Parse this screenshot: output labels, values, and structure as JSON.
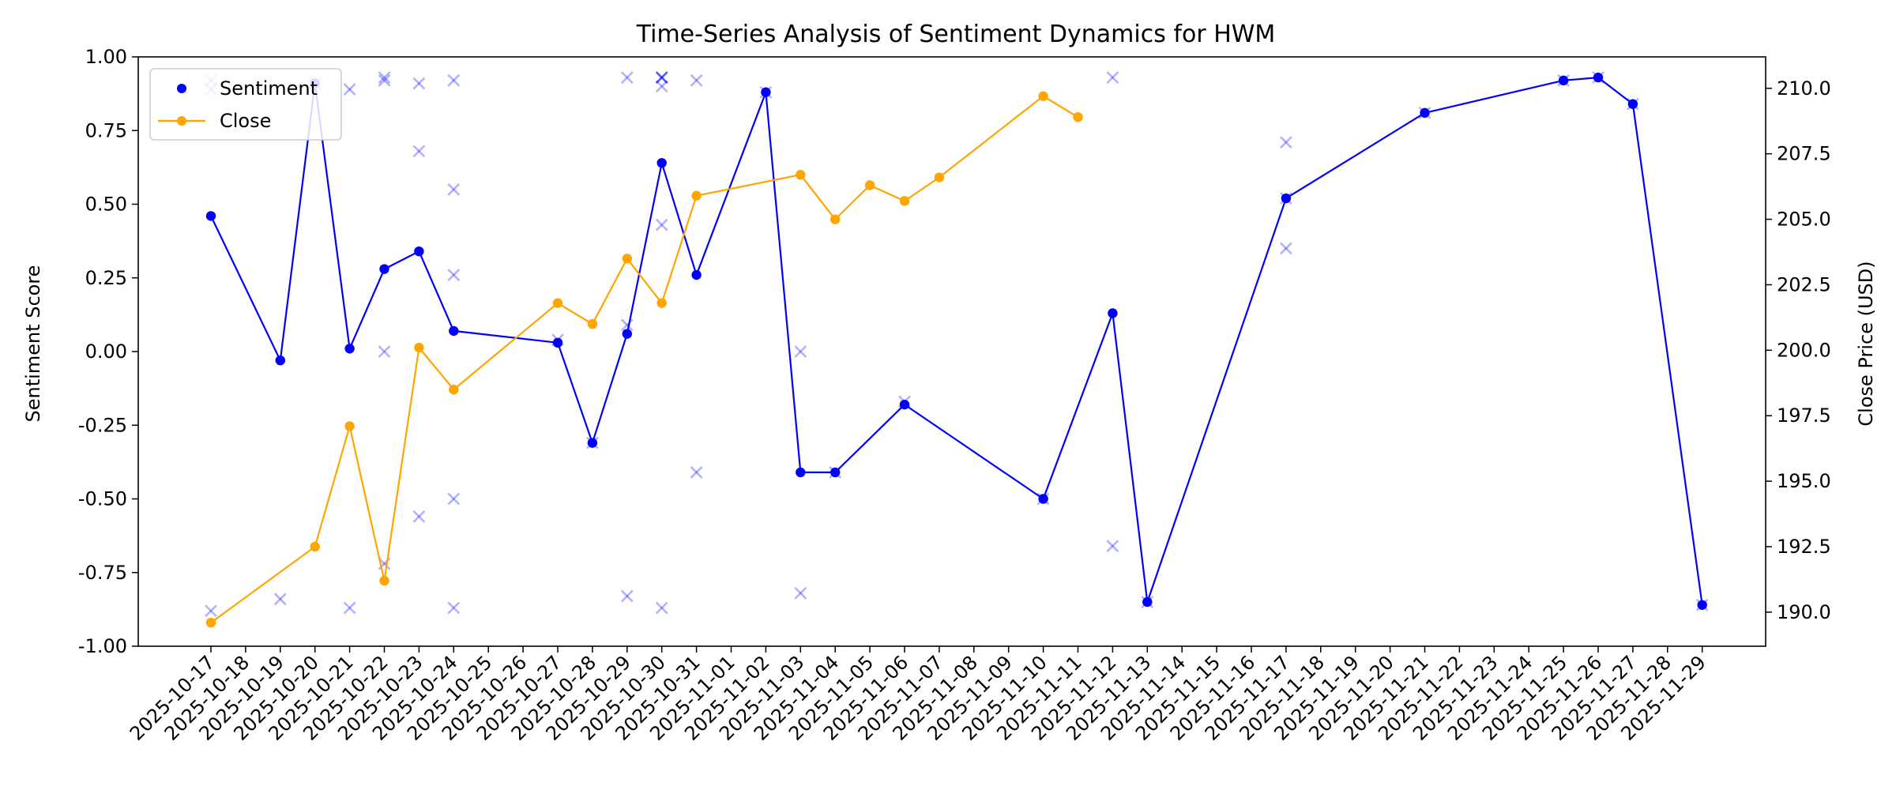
{
  "chart_data": {
    "type": "line",
    "title": "Time-Series Analysis of Sentiment Dynamics for HWM",
    "xlabel": "",
    "ylabel_left": "Sentiment Score",
    "ylabel_right": "Close Price (USD)",
    "ylim_left": [
      -1.0,
      1.0
    ],
    "ylim_right": [
      188.7,
      211.2
    ],
    "yticks_left": [
      "1.00",
      "0.75",
      "0.50",
      "0.25",
      "0.00",
      "-0.25",
      "-0.50",
      "-0.75",
      "-1.00"
    ],
    "yticks_right": [
      "210.0",
      "207.5",
      "205.0",
      "202.5",
      "200.0",
      "197.5",
      "195.0",
      "192.5",
      "190.0"
    ],
    "categories": [
      "2025-10-17",
      "2025-10-18",
      "2025-10-19",
      "2025-10-20",
      "2025-10-21",
      "2025-10-22",
      "2025-10-23",
      "2025-10-24",
      "2025-10-25",
      "2025-10-26",
      "2025-10-27",
      "2025-10-28",
      "2025-10-29",
      "2025-10-30",
      "2025-10-31",
      "2025-11-01",
      "2025-11-02",
      "2025-11-03",
      "2025-11-04",
      "2025-11-05",
      "2025-11-06",
      "2025-11-07",
      "2025-11-08",
      "2025-11-09",
      "2025-11-10",
      "2025-11-11",
      "2025-11-12",
      "2025-11-13",
      "2025-11-14",
      "2025-11-15",
      "2025-11-16",
      "2025-11-17",
      "2025-11-18",
      "2025-11-19",
      "2025-11-20",
      "2025-11-21",
      "2025-11-22",
      "2025-11-23",
      "2025-11-24",
      "2025-11-25",
      "2025-11-26",
      "2025-11-27",
      "2025-11-28",
      "2025-11-29"
    ],
    "grid": false,
    "legend_position": "top-left",
    "series": [
      {
        "name": "Sentiment",
        "color": "#0000ff",
        "axis": "left",
        "points": [
          {
            "x": "2025-10-17",
            "y": 0.46
          },
          {
            "x": "2025-10-19",
            "y": -0.03
          },
          {
            "x": "2025-10-20",
            "y": 0.91
          },
          {
            "x": "2025-10-21",
            "y": 0.01
          },
          {
            "x": "2025-10-22",
            "y": 0.28
          },
          {
            "x": "2025-10-23",
            "y": 0.34
          },
          {
            "x": "2025-10-24",
            "y": 0.07
          },
          {
            "x": "2025-10-27",
            "y": 0.03
          },
          {
            "x": "2025-10-28",
            "y": -0.31
          },
          {
            "x": "2025-10-29",
            "y": 0.06
          },
          {
            "x": "2025-10-30",
            "y": 0.64
          },
          {
            "x": "2025-10-31",
            "y": 0.26
          },
          {
            "x": "2025-11-02",
            "y": 0.88
          },
          {
            "x": "2025-11-03",
            "y": -0.41
          },
          {
            "x": "2025-11-04",
            "y": -0.41
          },
          {
            "x": "2025-11-06",
            "y": -0.18
          },
          {
            "x": "2025-11-10",
            "y": -0.5
          },
          {
            "x": "2025-11-12",
            "y": 0.13
          },
          {
            "x": "2025-11-13",
            "y": -0.85
          },
          {
            "x": "2025-11-17",
            "y": 0.52
          },
          {
            "x": "2025-11-21",
            "y": 0.81
          },
          {
            "x": "2025-11-25",
            "y": 0.92
          },
          {
            "x": "2025-11-26",
            "y": 0.93
          },
          {
            "x": "2025-11-27",
            "y": 0.84
          },
          {
            "x": "2025-11-29",
            "y": -0.86
          }
        ]
      },
      {
        "name": "Close",
        "color": "#ffa500",
        "axis": "right",
        "points": [
          {
            "x": "2025-10-17",
            "y": 189.6
          },
          {
            "x": "2025-10-20",
            "y": 192.5
          },
          {
            "x": "2025-10-21",
            "y": 197.1
          },
          {
            "x": "2025-10-22",
            "y": 191.2
          },
          {
            "x": "2025-10-23",
            "y": 200.1
          },
          {
            "x": "2025-10-24",
            "y": 198.5
          },
          {
            "x": "2025-10-27",
            "y": 201.8
          },
          {
            "x": "2025-10-28",
            "y": 201.0
          },
          {
            "x": "2025-10-29",
            "y": 203.5
          },
          {
            "x": "2025-10-30",
            "y": 201.8
          },
          {
            "x": "2025-10-31",
            "y": 205.9
          },
          {
            "x": "2025-11-03",
            "y": 206.7
          },
          {
            "x": "2025-11-04",
            "y": 205.0
          },
          {
            "x": "2025-11-05",
            "y": 206.3
          },
          {
            "x": "2025-11-06",
            "y": 205.7
          },
          {
            "x": "2025-11-07",
            "y": 206.6
          },
          {
            "x": "2025-11-10",
            "y": 209.7
          },
          {
            "x": "2025-11-11",
            "y": 208.9
          }
        ]
      }
    ],
    "scatter_marks": {
      "marker": "x",
      "color": "#0000ff",
      "axis": "left",
      "points": [
        {
          "x": "2025-10-17",
          "y": 0.92
        },
        {
          "x": "2025-10-17",
          "y": 0.89
        },
        {
          "x": "2025-10-17",
          "y": -0.88
        },
        {
          "x": "2025-10-19",
          "y": -0.84
        },
        {
          "x": "2025-10-20",
          "y": 0.91
        },
        {
          "x": "2025-10-21",
          "y": 0.89
        },
        {
          "x": "2025-10-21",
          "y": -0.87
        },
        {
          "x": "2025-10-22",
          "y": 0.93
        },
        {
          "x": "2025-10-22",
          "y": 0.92
        },
        {
          "x": "2025-10-22",
          "y": 0.0
        },
        {
          "x": "2025-10-22",
          "y": -0.72
        },
        {
          "x": "2025-10-23",
          "y": 0.91
        },
        {
          "x": "2025-10-23",
          "y": 0.68
        },
        {
          "x": "2025-10-23",
          "y": -0.56
        },
        {
          "x": "2025-10-24",
          "y": 0.92
        },
        {
          "x": "2025-10-24",
          "y": 0.55
        },
        {
          "x": "2025-10-24",
          "y": 0.26
        },
        {
          "x": "2025-10-24",
          "y": -0.5
        },
        {
          "x": "2025-10-24",
          "y": -0.87
        },
        {
          "x": "2025-10-27",
          "y": 0.04
        },
        {
          "x": "2025-10-28",
          "y": -0.31
        },
        {
          "x": "2025-10-29",
          "y": 0.93
        },
        {
          "x": "2025-10-29",
          "y": 0.09
        },
        {
          "x": "2025-10-29",
          "y": -0.83
        },
        {
          "x": "2025-10-30",
          "y": 0.93
        },
        {
          "x": "2025-10-30",
          "y": 0.93
        },
        {
          "x": "2025-10-30",
          "y": 0.93
        },
        {
          "x": "2025-10-30",
          "y": 0.9
        },
        {
          "x": "2025-10-30",
          "y": 0.43
        },
        {
          "x": "2025-10-30",
          "y": -0.87
        },
        {
          "x": "2025-10-31",
          "y": 0.92
        },
        {
          "x": "2025-10-31",
          "y": -0.41
        },
        {
          "x": "2025-11-02",
          "y": 0.88
        },
        {
          "x": "2025-11-03",
          "y": 0.0
        },
        {
          "x": "2025-11-03",
          "y": -0.82
        },
        {
          "x": "2025-11-04",
          "y": -0.41
        },
        {
          "x": "2025-11-06",
          "y": -0.17
        },
        {
          "x": "2025-11-10",
          "y": -0.5
        },
        {
          "x": "2025-11-12",
          "y": 0.93
        },
        {
          "x": "2025-11-12",
          "y": -0.66
        },
        {
          "x": "2025-11-13",
          "y": -0.85
        },
        {
          "x": "2025-11-17",
          "y": 0.71
        },
        {
          "x": "2025-11-17",
          "y": 0.35
        },
        {
          "x": "2025-11-17",
          "y": 0.52
        },
        {
          "x": "2025-11-21",
          "y": 0.81
        },
        {
          "x": "2025-11-25",
          "y": 0.92
        },
        {
          "x": "2025-11-26",
          "y": 0.93
        },
        {
          "x": "2025-11-27",
          "y": 0.84
        },
        {
          "x": "2025-11-29",
          "y": -0.86
        }
      ]
    }
  }
}
